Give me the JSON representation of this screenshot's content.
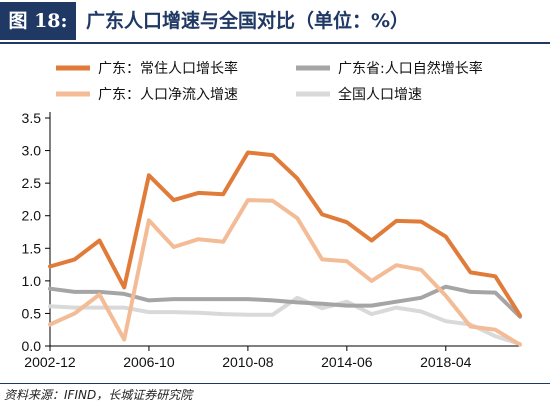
{
  "header": {
    "figure_label": "图 18:",
    "title": "广东人口增速与全国对比（单位：%）"
  },
  "footer": {
    "source": "资料来源：IFIND，长城证券研究院"
  },
  "chart_data": {
    "type": "line",
    "title": "广东人口增速与全国对比（单位：%）",
    "xlabel": "",
    "ylabel": "",
    "x": [
      "2002-12",
      "2003-12",
      "2004-12",
      "2005-12",
      "2006-10",
      "2007-10",
      "2008-10",
      "2009-10",
      "2010-08",
      "2011-08",
      "2012-08",
      "2013-08",
      "2014-06",
      "2015-06",
      "2016-06",
      "2017-06",
      "2018-04",
      "2019-04",
      "2020-04",
      "2021-04"
    ],
    "x_tick_labels": [
      "2002-12",
      "2006-10",
      "2010-08",
      "2014-06",
      "2018-04"
    ],
    "x_tick_indices": [
      0,
      4,
      8,
      12,
      16
    ],
    "y_ticks": [
      "0.0",
      "0.5",
      "1.0",
      "1.5",
      "2.0",
      "2.5",
      "3.0",
      "3.5"
    ],
    "ylim": [
      0,
      3.5
    ],
    "grid": false,
    "legend_position": "top",
    "series": [
      {
        "name": "广东：常住人口增长率",
        "color": "#e07b39",
        "width": 4,
        "values": [
          1.22,
          1.33,
          1.62,
          0.9,
          2.62,
          2.24,
          2.35,
          2.33,
          2.97,
          2.93,
          2.57,
          2.02,
          1.9,
          1.62,
          1.92,
          1.91,
          1.68,
          1.13,
          1.07,
          0.47
        ]
      },
      {
        "name": "广东省:人口自然增长率",
        "color": "#a5a5a5",
        "width": 4,
        "values": [
          0.88,
          0.83,
          0.83,
          0.8,
          0.7,
          0.72,
          0.72,
          0.72,
          0.72,
          0.7,
          0.67,
          0.65,
          0.62,
          0.62,
          0.68,
          0.74,
          0.91,
          0.83,
          0.82,
          0.45
        ]
      },
      {
        "name": "广东：人口净流入增速",
        "color": "#f3bc96",
        "width": 4,
        "values": [
          0.33,
          0.5,
          0.79,
          0.1,
          1.93,
          1.52,
          1.64,
          1.6,
          2.24,
          2.23,
          1.96,
          1.33,
          1.3,
          1.0,
          1.24,
          1.17,
          0.77,
          0.3,
          0.25,
          0.02
        ]
      },
      {
        "name": "全国人口增速",
        "color": "#d9d9d9",
        "width": 4,
        "values": [
          0.61,
          0.59,
          0.59,
          0.59,
          0.52,
          0.52,
          0.51,
          0.49,
          0.48,
          0.48,
          0.74,
          0.58,
          0.68,
          0.49,
          0.59,
          0.53,
          0.38,
          0.33,
          0.15,
          0.03
        ]
      }
    ]
  }
}
